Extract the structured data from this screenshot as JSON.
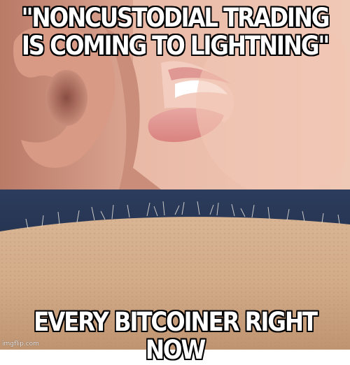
{
  "meme": {
    "top_text": "\"NONCUSTODIAL TRADING\nIS COMING TO LIGHTNING\"",
    "bottom_text": "EVERY BITCOINER RIGHT NOW",
    "top_image": "whisper-into-ear",
    "bottom_image": "goosebumps-arm-hair",
    "watermark": "imgflip.com"
  },
  "colors": {
    "caption_fill": "#ffffff",
    "caption_outline": "#000000",
    "skin": "#d9a38c",
    "lips": "#e49a9a",
    "arm_skin": "#cfa987",
    "background_blue": "#1f2f4f"
  }
}
